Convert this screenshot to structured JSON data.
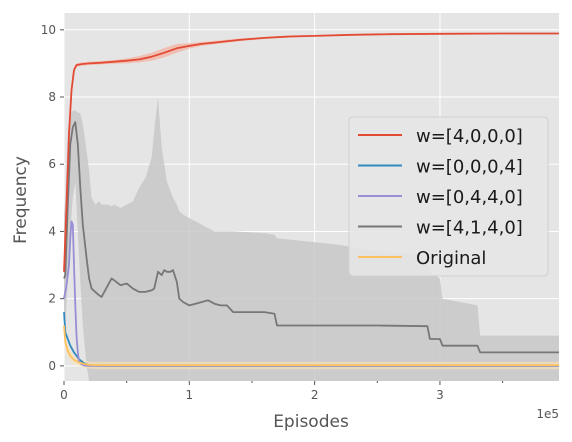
{
  "chart_data": {
    "type": "line",
    "title": "",
    "xlabel": "Episodes",
    "ylabel": "Frequency",
    "x_offset_label": "1e5",
    "xlim": [
      0,
      3.95
    ],
    "ylim": [
      -0.45,
      10.5
    ],
    "x_ticks": [
      0,
      1,
      2,
      3
    ],
    "x_tick_labels": [
      "0",
      "1",
      "2",
      "3"
    ],
    "y_ticks": [
      0,
      2,
      4,
      6,
      8,
      10
    ],
    "y_tick_labels": [
      "0",
      "2",
      "4",
      "6",
      "8",
      "10"
    ],
    "grid": true,
    "legend_position": "center-right",
    "series": [
      {
        "name": "w=[4,0,0,0]",
        "color": "#e24a33",
        "x": [
          0,
          0.02,
          0.04,
          0.06,
          0.08,
          0.1,
          0.14,
          0.2,
          0.3,
          0.4,
          0.5,
          0.6,
          0.7,
          0.8,
          0.9,
          1.0,
          1.1,
          1.2,
          1.4,
          1.6,
          1.8,
          2.0,
          2.3,
          2.6,
          3.0,
          3.5,
          3.95
        ],
        "y": [
          2.8,
          4.8,
          6.9,
          8.2,
          8.8,
          8.95,
          8.98,
          9.0,
          9.02,
          9.05,
          9.08,
          9.12,
          9.2,
          9.32,
          9.45,
          9.52,
          9.58,
          9.62,
          9.7,
          9.76,
          9.8,
          9.82,
          9.85,
          9.87,
          9.88,
          9.89,
          9.89
        ],
        "band_lower": [
          2.6,
          4.5,
          6.6,
          8.0,
          8.7,
          8.9,
          8.93,
          8.95,
          8.97,
          8.99,
          9.0,
          9.03,
          9.08,
          9.18,
          9.32,
          9.44,
          9.52,
          9.57,
          9.66,
          9.73,
          9.77,
          9.8,
          9.83,
          9.86,
          9.87,
          9.88,
          9.88
        ],
        "band_upper": [
          3.0,
          5.1,
          7.2,
          8.4,
          8.9,
          9.0,
          9.03,
          9.05,
          9.07,
          9.1,
          9.15,
          9.22,
          9.32,
          9.46,
          9.58,
          9.6,
          9.64,
          9.67,
          9.74,
          9.79,
          9.83,
          9.84,
          9.87,
          9.88,
          9.89,
          9.9,
          9.9
        ]
      },
      {
        "name": "w=[0,0,0,4]",
        "color": "#348abd",
        "x": [
          0,
          0.01,
          0.03,
          0.05,
          0.08,
          0.12,
          0.16,
          0.2,
          0.3,
          0.5,
          1.0,
          2.0,
          3.0,
          3.95
        ],
        "y": [
          1.6,
          1.0,
          0.8,
          0.6,
          0.4,
          0.2,
          0.08,
          0.02,
          0.0,
          0.0,
          0.0,
          0.0,
          0.0,
          0.0
        ]
      },
      {
        "name": "w=[0,4,4,0]",
        "color": "#988ed5",
        "x": [
          0,
          0.02,
          0.04,
          0.05,
          0.06,
          0.07,
          0.08,
          0.09,
          0.1,
          0.11,
          0.12,
          0.14,
          0.16,
          0.2,
          0.3,
          1.0,
          3.95
        ],
        "y": [
          2.0,
          2.4,
          3.0,
          3.8,
          4.3,
          4.2,
          3.0,
          1.8,
          0.9,
          0.4,
          0.15,
          0.05,
          0.01,
          0.0,
          0.0,
          0.0,
          0.0
        ]
      },
      {
        "name": "w=[4,1,4,0]",
        "color": "#777777",
        "x": [
          0,
          0.01,
          0.03,
          0.05,
          0.07,
          0.09,
          0.11,
          0.13,
          0.15,
          0.18,
          0.2,
          0.22,
          0.25,
          0.28,
          0.3,
          0.35,
          0.38,
          0.4,
          0.45,
          0.5,
          0.55,
          0.6,
          0.65,
          0.7,
          0.72,
          0.75,
          0.78,
          0.8,
          0.82,
          0.85,
          0.87,
          0.9,
          0.92,
          0.95,
          1.0,
          1.05,
          1.1,
          1.15,
          1.2,
          1.25,
          1.3,
          1.35,
          1.6,
          1.68,
          1.7,
          2.2,
          2.5,
          2.9,
          2.92,
          3.0,
          3.02,
          3.3,
          3.32,
          3.4,
          3.95
        ],
        "y": [
          2.6,
          2.7,
          4.8,
          6.6,
          7.1,
          7.25,
          6.6,
          5.3,
          4.2,
          3.2,
          2.6,
          2.3,
          2.2,
          2.1,
          2.05,
          2.4,
          2.6,
          2.55,
          2.4,
          2.45,
          2.3,
          2.2,
          2.2,
          2.25,
          2.3,
          2.8,
          2.7,
          2.85,
          2.8,
          2.8,
          2.85,
          2.5,
          2.0,
          1.9,
          1.8,
          1.85,
          1.9,
          1.95,
          1.85,
          1.8,
          1.8,
          1.6,
          1.6,
          1.55,
          1.2,
          1.2,
          1.2,
          1.18,
          0.8,
          0.8,
          0.6,
          0.6,
          0.4,
          0.4,
          0.4
        ],
        "band_lower": [
          1.0,
          1.2,
          2.5,
          4.0,
          5.0,
          5.5,
          4.0,
          2.5,
          1.2,
          0.0,
          -0.45,
          -0.45,
          -0.45,
          -0.45,
          -0.45,
          -0.45,
          -0.45,
          -0.45,
          -0.45,
          -0.45,
          -0.45,
          -0.45,
          -0.45,
          -0.45,
          -0.45,
          -0.45,
          -0.45,
          -0.45,
          -0.45,
          -0.45,
          -0.45,
          -0.45,
          -0.45,
          -0.45,
          -0.45,
          -0.45,
          -0.45,
          -0.45,
          -0.45,
          -0.45,
          -0.45,
          -0.45,
          -0.45,
          -0.45,
          -0.45,
          -0.45,
          -0.45,
          -0.45,
          -0.45,
          -0.45,
          -0.45,
          -0.45,
          -0.45,
          -0.45,
          -0.45
        ],
        "band_upper": [
          4.5,
          5.0,
          7.0,
          7.5,
          7.6,
          7.6,
          7.55,
          7.5,
          7.2,
          6.4,
          5.8,
          5.0,
          4.8,
          4.9,
          4.8,
          4.8,
          4.75,
          4.8,
          4.7,
          4.8,
          4.9,
          5.3,
          5.6,
          6.2,
          7.0,
          8.0,
          6.5,
          6.0,
          5.5,
          5.2,
          5.0,
          4.8,
          4.6,
          4.5,
          4.4,
          4.3,
          4.2,
          4.1,
          4.0,
          4.0,
          4.0,
          4.0,
          3.95,
          3.9,
          3.8,
          3.6,
          3.4,
          3.3,
          2.8,
          2.6,
          2.0,
          1.8,
          0.9,
          0.9,
          0.9
        ]
      },
      {
        "name": "Original",
        "color": "#fbc15e",
        "x": [
          0,
          0.01,
          0.03,
          0.05,
          0.08,
          0.12,
          0.16,
          0.2,
          0.3,
          0.5,
          1.0,
          2.0,
          3.0,
          3.95
        ],
        "y": [
          1.2,
          0.7,
          0.45,
          0.3,
          0.18,
          0.1,
          0.06,
          0.03,
          0.02,
          0.02,
          0.02,
          0.02,
          0.02,
          0.02
        ],
        "band_lower": [
          0.9,
          0.5,
          0.3,
          0.15,
          0.05,
          0.0,
          -0.05,
          -0.08,
          -0.1,
          -0.1,
          -0.1,
          -0.1,
          -0.1,
          -0.1
        ],
        "band_upper": [
          1.5,
          0.9,
          0.6,
          0.45,
          0.3,
          0.2,
          0.15,
          0.12,
          0.12,
          0.12,
          0.12,
          0.12,
          0.12,
          0.12
        ]
      }
    ]
  }
}
